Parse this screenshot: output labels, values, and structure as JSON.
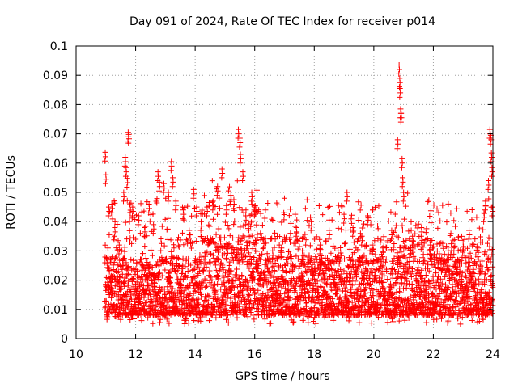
{
  "chart_data": {
    "type": "scatter",
    "title": "Day 091 of 2024, Rate Of TEC Index for receiver p014",
    "xlabel": "GPS time / hours",
    "ylabel": "ROTI / TECUs",
    "xlim": [
      10,
      24
    ],
    "ylim": [
      0,
      0.1
    ],
    "x_ticks": [
      10,
      12,
      14,
      16,
      18,
      20,
      22,
      24
    ],
    "x_tick_labels": [
      "10",
      "12",
      "14",
      "16",
      "18",
      "20",
      "22",
      "24"
    ],
    "y_ticks": [
      0,
      0.01,
      0.02,
      0.03,
      0.04,
      0.05,
      0.06,
      0.07,
      0.08,
      0.09,
      0.1
    ],
    "y_tick_labels": [
      "0",
      "0.01",
      "0.02",
      "0.03",
      "0.04",
      "0.05",
      "0.06",
      "0.07",
      "0.08",
      "0.09",
      "0.1"
    ],
    "grid": true,
    "marker": "+",
    "marker_color": "#ff0000",
    "series": [
      {
        "name": "ROTI",
        "points": [
          [
            10.98,
            0.0637
          ],
          [
            11.0,
            0.056
          ],
          [
            11.1,
            0.045
          ],
          [
            11.2,
            0.046
          ],
          [
            11.3,
            0.038
          ],
          [
            11.45,
            0.032
          ],
          [
            11.6,
            0.05
          ],
          [
            11.65,
            0.062
          ],
          [
            11.68,
            0.0585
          ],
          [
            11.72,
            0.0548
          ],
          [
            11.75,
            0.0705
          ],
          [
            11.77,
            0.0698
          ],
          [
            11.9,
            0.045
          ],
          [
            12.1,
            0.042
          ],
          [
            12.3,
            0.038
          ],
          [
            12.45,
            0.046
          ],
          [
            12.6,
            0.039
          ],
          [
            12.75,
            0.057
          ],
          [
            12.8,
            0.0535
          ],
          [
            12.95,
            0.053
          ],
          [
            13.1,
            0.05
          ],
          [
            13.2,
            0.0605
          ],
          [
            13.25,
            0.055
          ],
          [
            13.35,
            0.047
          ],
          [
            13.6,
            0.044
          ],
          [
            13.8,
            0.037
          ],
          [
            13.95,
            0.051
          ],
          [
            14.05,
            0.045
          ],
          [
            14.2,
            0.04
          ],
          [
            14.4,
            0.045
          ],
          [
            14.6,
            0.047
          ],
          [
            14.75,
            0.052
          ],
          [
            14.9,
            0.058
          ],
          [
            15.05,
            0.0455
          ],
          [
            15.2,
            0.049
          ],
          [
            15.3,
            0.0475
          ],
          [
            15.45,
            0.0715
          ],
          [
            15.5,
            0.0685
          ],
          [
            15.52,
            0.063
          ],
          [
            15.6,
            0.057
          ],
          [
            15.7,
            0.042
          ],
          [
            15.9,
            0.05
          ],
          [
            16.0,
            0.045
          ],
          [
            16.3,
            0.034
          ],
          [
            16.6,
            0.03
          ],
          [
            16.9,
            0.031
          ],
          [
            17.2,
            0.036
          ],
          [
            17.4,
            0.038
          ],
          [
            17.6,
            0.03
          ],
          [
            17.9,
            0.04
          ],
          [
            18.2,
            0.032
          ],
          [
            18.5,
            0.037
          ],
          [
            18.8,
            0.03
          ],
          [
            19.0,
            0.0425
          ],
          [
            19.1,
            0.05
          ],
          [
            19.3,
            0.038
          ],
          [
            19.6,
            0.035
          ],
          [
            19.8,
            0.042
          ],
          [
            19.95,
            0.032
          ],
          [
            20.3,
            0.031
          ],
          [
            20.6,
            0.037
          ],
          [
            20.8,
            0.068
          ],
          [
            20.85,
            0.0935
          ],
          [
            20.87,
            0.089
          ],
          [
            20.88,
            0.0855
          ],
          [
            20.9,
            0.0785
          ],
          [
            20.92,
            0.077
          ],
          [
            20.95,
            0.0615
          ],
          [
            20.97,
            0.055
          ],
          [
            21.0,
            0.05
          ],
          [
            21.3,
            0.035
          ],
          [
            21.6,
            0.038
          ],
          [
            21.9,
            0.032
          ],
          [
            22.2,
            0.029
          ],
          [
            22.5,
            0.03
          ],
          [
            22.8,
            0.026
          ],
          [
            23.0,
            0.033
          ],
          [
            23.2,
            0.037
          ],
          [
            23.5,
            0.031
          ],
          [
            23.7,
            0.043
          ],
          [
            23.75,
            0.047
          ],
          [
            23.85,
            0.054
          ],
          [
            23.9,
            0.0715
          ],
          [
            23.93,
            0.0695
          ],
          [
            23.95,
            0.0635
          ],
          [
            23.97,
            0.0585
          ],
          [
            23.98,
            0.045
          ]
        ],
        "dense_band": {
          "x_range": [
            10.97,
            24.0
          ],
          "typical_range": [
            0.005,
            0.03
          ],
          "minimum": 0.003,
          "points_drawn": 3600
        }
      }
    ]
  }
}
